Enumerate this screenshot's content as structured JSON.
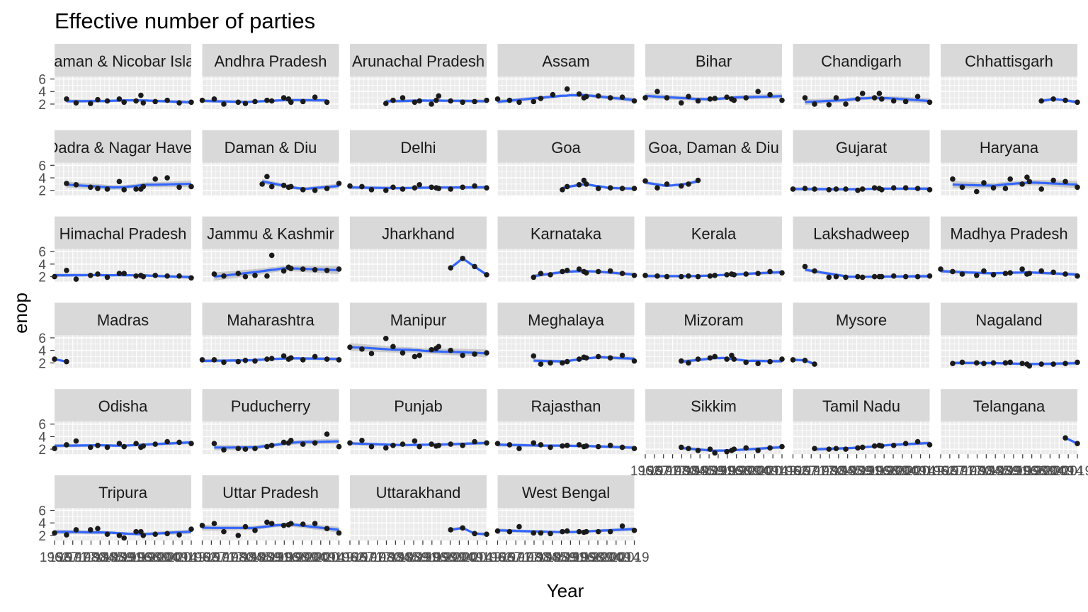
{
  "chart_data": {
    "type": "scatter",
    "title": "Effective number of parties",
    "xlabel": "Year",
    "ylabel": "enop",
    "xlim": [
      1962,
      2019
    ],
    "ylim": [
      1.2,
      6.4
    ],
    "yticks": [
      2,
      4,
      6
    ],
    "xtick_labels": [
      "1962",
      "1967",
      "1971",
      "1977",
      "1980",
      "1984",
      "1985",
      "1989",
      "1991",
      "1996",
      "1998",
      "1999",
      "2004",
      "2009",
      "2014",
      "2019"
    ],
    "grid": true,
    "layout": "facet_wrap",
    "ncol": 7,
    "colors": {
      "panel_background": "#EBEBEB",
      "strip_background": "#D9D9D9",
      "grid": "#FFFFFF",
      "points": "#1A1A1A",
      "smooth_line": "#3366FF",
      "smooth_band": "#BDBDBD"
    },
    "facets": [
      {
        "label": "Andaman & Nicobar Islands",
        "x": [
          1967,
          1971,
          1977,
          1980,
          1984,
          1989,
          1991,
          1996,
          1998,
          1999,
          2004,
          2009,
          2014,
          2019
        ],
        "y": [
          2.8,
          2.2,
          2.1,
          2.7,
          2.5,
          2.8,
          2.3,
          2.5,
          3.4,
          2.2,
          2.4,
          2.6,
          2.2,
          2.3
        ]
      },
      {
        "label": "Andhra Pradesh",
        "x": [
          1962,
          1967,
          1971,
          1977,
          1980,
          1984,
          1989,
          1991,
          1996,
          1998,
          1999,
          2004,
          2009,
          2014
        ],
        "y": [
          2.6,
          2.8,
          2.0,
          2.3,
          2.1,
          2.4,
          2.6,
          2.5,
          3.0,
          2.8,
          2.3,
          2.4,
          3.1,
          2.3
        ]
      },
      {
        "label": "Arunachal Pradesh",
        "x": [
          1977,
          1980,
          1984,
          1989,
          1991,
          1996,
          1998,
          1999,
          2004,
          2009,
          2014,
          2019
        ],
        "y": [
          2.1,
          2.6,
          3.0,
          2.3,
          2.5,
          2.0,
          2.6,
          3.3,
          2.5,
          2.3,
          2.4,
          2.6
        ]
      },
      {
        "label": "Assam",
        "x": [
          1962,
          1967,
          1971,
          1977,
          1980,
          1985,
          1991,
          1996,
          1998,
          1999,
          2004,
          2009,
          2014,
          2019
        ],
        "y": [
          2.8,
          2.6,
          2.3,
          2.4,
          2.9,
          3.5,
          4.4,
          3.6,
          3.0,
          3.2,
          3.3,
          3.0,
          3.1,
          2.5
        ]
      },
      {
        "label": "Bihar",
        "x": [
          1962,
          1967,
          1971,
          1977,
          1980,
          1984,
          1989,
          1991,
          1996,
          1998,
          1999,
          2004,
          2009,
          2014,
          2019
        ],
        "y": [
          3.0,
          4.0,
          3.0,
          2.2,
          3.2,
          2.5,
          2.8,
          2.9,
          3.1,
          2.8,
          2.6,
          3.0,
          4.0,
          3.5,
          2.6
        ]
      },
      {
        "label": "Chandigarh",
        "x": [
          1967,
          1971,
          1977,
          1980,
          1984,
          1989,
          1991,
          1996,
          1998,
          1999,
          2004,
          2009,
          2014,
          2019
        ],
        "y": [
          3.0,
          2.0,
          1.9,
          3.0,
          2.0,
          2.8,
          3.7,
          3.0,
          3.7,
          2.8,
          2.5,
          2.4,
          3.2,
          2.3
        ]
      },
      {
        "label": "Chhattisgarh",
        "x": [
          2004,
          2009,
          2014,
          2019
        ],
        "y": [
          2.5,
          2.8,
          2.6,
          2.3
        ]
      },
      {
        "label": "Dadra & Nagar Haveli",
        "x": [
          1967,
          1971,
          1977,
          1980,
          1984,
          1989,
          1991,
          1996,
          1998,
          1999,
          2004,
          2009,
          2014,
          2019
        ],
        "y": [
          3.1,
          2.9,
          2.5,
          2.3,
          2.2,
          3.4,
          2.1,
          2.2,
          2.2,
          2.6,
          3.8,
          4.0,
          2.5,
          2.6
        ]
      },
      {
        "label": "Daman & Diu",
        "x": [
          1987,
          1989,
          1991,
          1996,
          1998,
          1999,
          2004,
          2009,
          2014,
          2019
        ],
        "y": [
          3.0,
          4.2,
          2.6,
          2.8,
          2.5,
          2.6,
          2.1,
          2.0,
          2.3,
          3.1
        ]
      },
      {
        "label": "Delhi",
        "x": [
          1962,
          1967,
          1971,
          1977,
          1980,
          1984,
          1989,
          1991,
          1996,
          1998,
          1999,
          2004,
          2009,
          2014,
          2019
        ],
        "y": [
          2.7,
          2.6,
          2.1,
          2.0,
          2.5,
          2.2,
          2.4,
          2.9,
          2.5,
          2.4,
          2.3,
          2.2,
          2.5,
          2.7,
          2.4
        ]
      },
      {
        "label": "Goa",
        "x": [
          1989,
          1991,
          1996,
          1998,
          1999,
          2004,
          2009,
          2014,
          2019
        ],
        "y": [
          2.1,
          2.6,
          2.9,
          3.6,
          3.0,
          2.3,
          2.4,
          2.3,
          2.3
        ]
      },
      {
        "label": "Goa, Daman & Diu",
        "x": [
          1962,
          1967,
          1971,
          1977,
          1980,
          1984
        ],
        "y": [
          3.5,
          2.4,
          3.0,
          2.7,
          3.0,
          3.6
        ]
      },
      {
        "label": "Gujarat",
        "x": [
          1962,
          1967,
          1971,
          1977,
          1980,
          1984,
          1989,
          1991,
          1996,
          1998,
          1999,
          2004,
          2009,
          2014,
          2019
        ],
        "y": [
          2.2,
          2.3,
          2.2,
          2.1,
          2.2,
          2.2,
          2.0,
          2.2,
          2.4,
          2.3,
          2.1,
          2.4,
          2.4,
          2.3,
          2.1
        ]
      },
      {
        "label": "Haryana",
        "x": [
          1967,
          1971,
          1977,
          1980,
          1984,
          1989,
          1991,
          1996,
          1998,
          1999,
          2004,
          2009,
          2014,
          2019
        ],
        "y": [
          3.8,
          2.5,
          1.8,
          3.2,
          2.4,
          2.3,
          3.8,
          3.0,
          4.1,
          3.4,
          2.2,
          3.6,
          3.4,
          2.5
        ]
      },
      {
        "label": "Himachal Pradesh",
        "x": [
          1962,
          1967,
          1971,
          1977,
          1980,
          1984,
          1989,
          1991,
          1996,
          1998,
          1999,
          2004,
          2009,
          2014,
          2019
        ],
        "y": [
          2.0,
          3.0,
          1.6,
          2.2,
          2.4,
          1.9,
          2.5,
          2.5,
          2.1,
          2.2,
          2.0,
          2.2,
          2.1,
          2.1,
          1.8
        ]
      },
      {
        "label": "Jammu & Kashmir",
        "x": [
          1967,
          1971,
          1977,
          1980,
          1984,
          1989,
          1991,
          1996,
          1998,
          1999,
          2004,
          2009,
          2014,
          2019
        ],
        "y": [
          2.4,
          2.1,
          2.5,
          2.0,
          2.2,
          2.1,
          5.4,
          2.9,
          3.5,
          3.3,
          3.2,
          3.1,
          3.0,
          3.2
        ]
      },
      {
        "label": "Jharkhand",
        "x": [
          2004,
          2009,
          2014,
          2019
        ],
        "y": [
          3.4,
          4.9,
          3.6,
          2.3
        ]
      },
      {
        "label": "Karnataka",
        "x": [
          1977,
          1980,
          1984,
          1989,
          1991,
          1996,
          1998,
          1999,
          2004,
          2009,
          2014,
          2019
        ],
        "y": [
          1.9,
          2.5,
          2.3,
          2.8,
          3.0,
          3.2,
          2.8,
          2.6,
          2.8,
          2.9,
          2.5,
          2.2
        ]
      },
      {
        "label": "Kerala",
        "x": [
          1962,
          1967,
          1971,
          1977,
          1980,
          1984,
          1989,
          1991,
          1996,
          1998,
          1999,
          2004,
          2009,
          2014,
          2019
        ],
        "y": [
          2.2,
          2.1,
          2.0,
          2.0,
          2.1,
          2.0,
          2.1,
          2.2,
          2.3,
          2.4,
          2.3,
          2.4,
          2.5,
          2.8,
          2.6
        ]
      },
      {
        "label": "Lakshadweep",
        "x": [
          1967,
          1971,
          1977,
          1980,
          1984,
          1989,
          1991,
          1996,
          1998,
          1999,
          2004,
          2009,
          2014,
          2019
        ],
        "y": [
          3.6,
          2.9,
          1.9,
          2.0,
          1.9,
          2.0,
          1.9,
          2.0,
          2.0,
          2.0,
          2.1,
          2.0,
          2.0,
          2.1
        ]
      },
      {
        "label": "Madhya Pradesh",
        "x": [
          1962,
          1967,
          1971,
          1977,
          1980,
          1984,
          1989,
          1991,
          1996,
          1998,
          1999,
          2004,
          2009,
          2014,
          2019
        ],
        "y": [
          3.2,
          2.8,
          2.4,
          2.2,
          2.9,
          2.3,
          2.5,
          2.6,
          3.2,
          2.4,
          2.5,
          2.9,
          2.7,
          2.4,
          2.1
        ]
      },
      {
        "label": "Madras",
        "x": [
          1962,
          1967
        ],
        "y": [
          2.6,
          2.2
        ]
      },
      {
        "label": "Maharashtra",
        "x": [
          1962,
          1967,
          1971,
          1977,
          1980,
          1984,
          1989,
          1991,
          1996,
          1998,
          1999,
          2004,
          2009,
          2014,
          2019
        ],
        "y": [
          2.5,
          2.5,
          2.1,
          2.2,
          2.4,
          2.3,
          2.6,
          2.7,
          3.1,
          2.6,
          2.8,
          2.5,
          3.0,
          2.6,
          2.5
        ]
      },
      {
        "label": "Manipur",
        "x": [
          1962,
          1967,
          1971,
          1977,
          1980,
          1984,
          1989,
          1991,
          1996,
          1998,
          1999,
          2004,
          2009,
          2014,
          2019
        ],
        "y": [
          4.5,
          4.2,
          3.5,
          5.9,
          4.6,
          3.6,
          3.0,
          3.2,
          4.1,
          4.3,
          4.6,
          4.0,
          3.2,
          3.4,
          3.6
        ]
      },
      {
        "label": "Meghalaya",
        "x": [
          1977,
          1980,
          1984,
          1989,
          1991,
          1996,
          1998,
          1999,
          2004,
          2009,
          2014,
          2019
        ],
        "y": [
          3.1,
          1.8,
          2.0,
          2.0,
          2.2,
          2.6,
          2.9,
          2.8,
          3.0,
          2.8,
          3.2,
          2.3
        ]
      },
      {
        "label": "Mizoram",
        "x": [
          1977,
          1980,
          1984,
          1989,
          1991,
          1996,
          1998,
          1999,
          2004,
          2009,
          2014,
          2019
        ],
        "y": [
          2.3,
          2.0,
          2.6,
          2.8,
          3.0,
          2.6,
          3.2,
          2.6,
          2.1,
          1.9,
          2.2,
          2.6
        ]
      },
      {
        "label": "Mysore",
        "x": [
          1962,
          1967,
          1971
        ],
        "y": [
          2.5,
          2.4,
          1.8
        ]
      },
      {
        "label": "Nagaland",
        "x": [
          1967,
          1971,
          1977,
          1980,
          1984,
          1989,
          1991,
          1996,
          1998,
          1999,
          2004,
          2009,
          2014,
          2019
        ],
        "y": [
          1.9,
          2.1,
          2.0,
          1.9,
          2.0,
          2.0,
          2.1,
          1.9,
          1.8,
          1.5,
          1.8,
          1.8,
          1.9,
          2.1
        ]
      },
      {
        "label": "Odisha",
        "x": [
          1962,
          1967,
          1971,
          1977,
          1980,
          1984,
          1989,
          1991,
          1996,
          1998,
          1999,
          2004,
          2009,
          2014,
          2019
        ],
        "y": [
          2.1,
          2.7,
          3.3,
          2.3,
          2.6,
          2.3,
          2.9,
          2.4,
          2.9,
          2.3,
          2.5,
          2.8,
          3.2,
          3.1,
          2.9
        ]
      },
      {
        "label": "Puducherry",
        "x": [
          1967,
          1971,
          1977,
          1980,
          1984,
          1989,
          1991,
          1996,
          1998,
          1999,
          2004,
          2009,
          2014,
          2019
        ],
        "y": [
          2.9,
          1.9,
          2.1,
          2.0,
          2.1,
          2.4,
          2.6,
          3.1,
          3.0,
          3.4,
          2.8,
          3.0,
          4.4,
          2.4
        ]
      },
      {
        "label": "Punjab",
        "x": [
          1962,
          1967,
          1971,
          1977,
          1980,
          1984,
          1989,
          1991,
          1996,
          1998,
          1999,
          2004,
          2009,
          2014,
          2019
        ],
        "y": [
          3.0,
          3.4,
          2.4,
          2.2,
          2.6,
          2.8,
          3.3,
          2.4,
          2.8,
          2.5,
          2.6,
          2.8,
          2.6,
          3.2,
          3.0
        ]
      },
      {
        "label": "Rajasthan",
        "x": [
          1962,
          1967,
          1971,
          1977,
          1980,
          1984,
          1989,
          1991,
          1996,
          1998,
          1999,
          2004,
          2009,
          2014,
          2019
        ],
        "y": [
          2.9,
          2.7,
          2.1,
          3.0,
          2.7,
          2.3,
          2.5,
          2.6,
          2.7,
          2.4,
          2.5,
          2.4,
          2.6,
          2.3,
          2.1
        ]
      },
      {
        "label": "Sikkim",
        "x": [
          1977,
          1980,
          1984,
          1989,
          1991,
          1996,
          1998,
          1999,
          2004,
          2009,
          2014,
          2019
        ],
        "y": [
          2.3,
          2.1,
          1.8,
          2.0,
          1.4,
          1.6,
          1.8,
          2.0,
          2.2,
          1.8,
          2.2,
          2.4
        ]
      },
      {
        "label": "Tamil Nadu",
        "x": [
          1971,
          1977,
          1980,
          1984,
          1989,
          1991,
          1996,
          1998,
          1999,
          2004,
          2009,
          2014,
          2019
        ],
        "y": [
          2.1,
          2.0,
          2.1,
          2.0,
          2.2,
          2.3,
          2.5,
          2.6,
          2.5,
          2.6,
          2.9,
          3.2,
          2.7
        ]
      },
      {
        "label": "Telangana",
        "x": [
          2014,
          2019
        ],
        "y": [
          3.8,
          2.9
        ]
      },
      {
        "label": "Tripura",
        "x": [
          1962,
          1967,
          1971,
          1977,
          1980,
          1984,
          1989,
          1991,
          1996,
          1998,
          1999,
          2004,
          2009,
          2014,
          2019
        ],
        "y": [
          2.4,
          2.1,
          2.9,
          2.9,
          3.1,
          2.2,
          2.0,
          1.6,
          2.6,
          2.6,
          2.0,
          2.2,
          2.3,
          2.1,
          3.0
        ]
      },
      {
        "label": "Uttar Pradesh",
        "x": [
          1962,
          1967,
          1971,
          1977,
          1980,
          1984,
          1989,
          1991,
          1996,
          1998,
          1999,
          2004,
          2009,
          2014,
          2019
        ],
        "y": [
          3.6,
          3.9,
          2.6,
          2.0,
          3.4,
          2.8,
          4.1,
          3.9,
          3.6,
          3.7,
          3.9,
          3.8,
          3.9,
          3.1,
          2.4
        ]
      },
      {
        "label": "Uttarakhand",
        "x": [
          2004,
          2009,
          2014,
          2019
        ],
        "y": [
          2.9,
          3.2,
          2.3,
          2.2
        ]
      },
      {
        "label": "West Bengal",
        "x": [
          1962,
          1967,
          1971,
          1977,
          1980,
          1984,
          1989,
          1991,
          1996,
          1998,
          1999,
          2004,
          2009,
          2014,
          2019
        ],
        "y": [
          2.7,
          2.6,
          3.4,
          2.4,
          2.4,
          2.3,
          2.6,
          2.7,
          2.6,
          2.5,
          2.6,
          2.6,
          2.6,
          3.5,
          2.8
        ]
      }
    ]
  }
}
